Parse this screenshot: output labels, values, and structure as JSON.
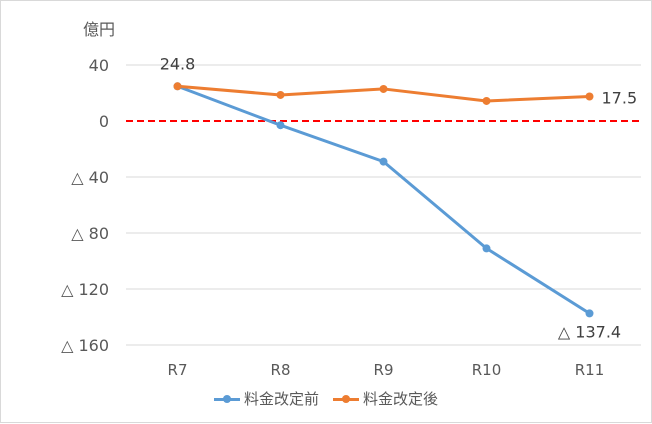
{
  "chart_data": {
    "type": "line",
    "title": "",
    "unit_label": "億円",
    "xlabel": "",
    "ylabel": "億円",
    "categories": [
      "R7",
      "R8",
      "R9",
      "R10",
      "R11"
    ],
    "series": [
      {
        "name": "料金改定前",
        "color": "#5B9BD5",
        "values": [
          24.8,
          -3,
          -29,
          -91,
          -137.4
        ]
      },
      {
        "name": "料金改定後",
        "color": "#ED7D31",
        "values": [
          24.8,
          18.6,
          22.9,
          14.3,
          17.5
        ]
      }
    ],
    "ylim": [
      -160,
      40
    ],
    "yticks": [
      40,
      0,
      -40,
      -80,
      -120,
      -160
    ],
    "ytick_labels": [
      "40",
      "0",
      "△ 40",
      "△ 80",
      "△ 120",
      "△ 160"
    ],
    "annotations": [
      {
        "series": "料金改定前",
        "category": "R7",
        "text": "24.8"
      },
      {
        "series": "料金改定後",
        "category": "R11",
        "text": "17.5"
      },
      {
        "series": "料金改定前",
        "category": "R11",
        "text": "△ 137.4"
      }
    ],
    "reference_line": {
      "value": 0,
      "color": "#FF0000",
      "style": "dashed"
    },
    "grid": true,
    "legend_position": "bottom"
  },
  "legend": {
    "items": [
      {
        "label": "料金改定前",
        "color": "#5B9BD5"
      },
      {
        "label": "料金改定後",
        "color": "#ED7D31"
      }
    ]
  }
}
